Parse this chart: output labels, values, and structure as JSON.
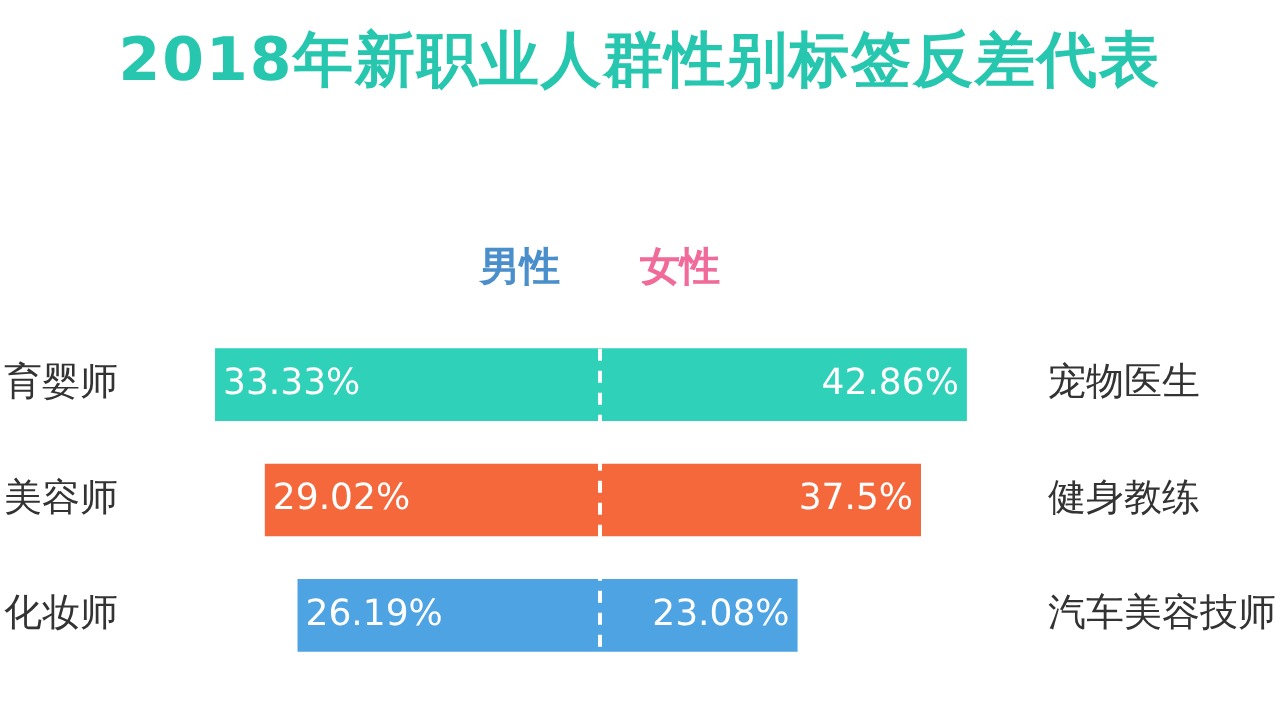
{
  "chart_data": [
    {
      "type": "bar",
      "orientation": "horizontal",
      "title": "2018年新职业人群性别标签反差代表",
      "subtitle": "男性",
      "categories": [
        "育婴师",
        "美容师",
        "化妆师"
      ],
      "values": [
        33.33,
        29.02,
        26.19
      ],
      "value_labels": [
        "33.33%",
        "29.02%",
        "26.19%"
      ],
      "colors": [
        "#2fd1b8",
        "#f4683c",
        "#4ea3e3"
      ],
      "tick_labels": "y",
      "ref_lines": [
        {
          "axis": "x",
          "value": 0,
          "color": "#ffffff",
          "line_style": "dashed"
        }
      ]
    },
    {
      "type": "bar",
      "orientation": "horizontal",
      "subtitle": "女性",
      "categories": [
        "宠物医生",
        "健身教练",
        "汽车美容技师"
      ],
      "values": [
        42.86,
        37.5,
        23.08
      ],
      "value_labels": [
        "42.86%",
        "37.5%",
        "23.08%"
      ],
      "colors": [
        "#2fd1b8",
        "#f4683c",
        "#4ea3e3"
      ],
      "tick_labels": "y",
      "ref_lines": [
        {
          "axis": "x",
          "value": 0,
          "color": "#ffffff",
          "line_style": "dashed"
        }
      ]
    }
  ]
}
